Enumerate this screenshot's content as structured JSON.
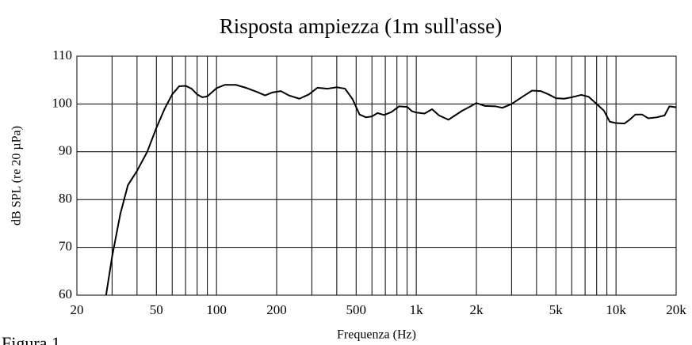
{
  "chart_data": {
    "type": "line",
    "title": "Risposta ampiezza (1m sull'asse)",
    "xlabel": "Frequenza (Hz)",
    "ylabel": "dB SPL (re 20 µPa)",
    "caption": "Figura 1",
    "x": [
      28,
      30,
      33,
      36,
      40,
      45,
      50,
      55,
      60,
      65,
      70,
      75,
      80,
      85,
      90,
      100,
      110,
      125,
      140,
      160,
      175,
      190,
      210,
      230,
      260,
      290,
      320,
      360,
      400,
      440,
      480,
      520,
      560,
      600,
      640,
      690,
      750,
      820,
      900,
      950,
      1000,
      1100,
      1200,
      1300,
      1450,
      1550,
      1700,
      1850,
      2000,
      2200,
      2500,
      2700,
      3000,
      3400,
      3800,
      4200,
      4600,
      5000,
      5500,
      6000,
      6700,
      7300,
      8000,
      8700,
      9300,
      10000,
      11000,
      11700,
      12500,
      13500,
      14500,
      16000,
      17500,
      18500,
      20000
    ],
    "values": [
      60,
      68,
      77,
      83,
      86,
      90,
      95,
      99,
      102,
      103.7,
      103.8,
      103.2,
      102,
      101.4,
      101.6,
      103.3,
      104,
      104,
      103.4,
      102.5,
      101.8,
      102.4,
      102.7,
      101.8,
      101.1,
      102,
      103.4,
      103.2,
      103.5,
      103.2,
      101,
      97.8,
      97.2,
      97.4,
      98.1,
      97.7,
      98.3,
      99.5,
      99.4,
      98.5,
      98.2,
      98,
      98.9,
      97.6,
      96.7,
      97.5,
      98.6,
      99.4,
      100.2,
      99.6,
      99.5,
      99.2,
      100,
      101.5,
      102.8,
      102.7,
      102,
      101.2,
      101.1,
      101.4,
      101.9,
      101.5,
      100,
      98.6,
      96.3,
      96,
      95.9,
      96.7,
      97.8,
      97.8,
      97,
      97.2,
      97.6,
      99.5,
      99.3
    ],
    "color": "#000000",
    "xlog": true,
    "xlim": [
      20,
      20000
    ],
    "ylim": [
      60,
      110
    ],
    "xticks": [
      20,
      50,
      100,
      200,
      500,
      {
        "value": 1000,
        "label": "1k"
      },
      {
        "value": 2000,
        "label": "2k"
      },
      {
        "value": 5000,
        "label": "5k"
      },
      {
        "value": 10000,
        "label": "10k"
      },
      {
        "value": 20000,
        "label": "20k"
      }
    ],
    "xminor": [
      30,
      40,
      60,
      70,
      80,
      90,
      300,
      400,
      600,
      700,
      800,
      900,
      3000,
      4000,
      6000,
      7000,
      8000,
      9000
    ],
    "yticks": [
      60,
      70,
      80,
      90,
      100,
      110
    ],
    "grid": true
  }
}
